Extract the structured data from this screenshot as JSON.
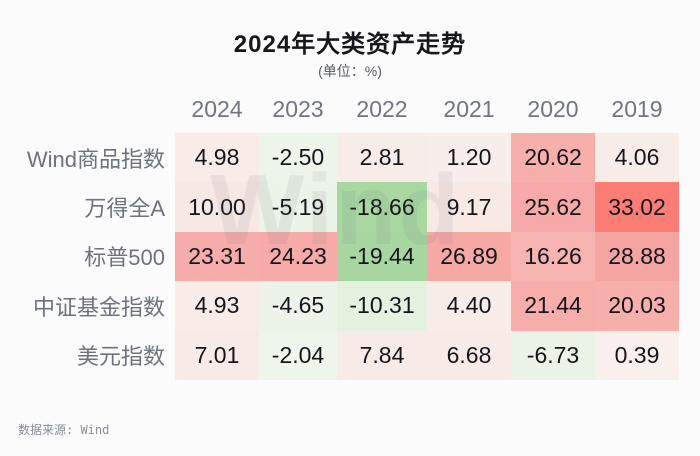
{
  "title": "2024年大类资产走势",
  "subtitle": "(单位：%)",
  "watermark": "Wind",
  "source_note": "数据来源: Wind",
  "colors": {
    "background": "#fbfbfc",
    "strong_red": "#fb7d76",
    "medium_red": "#f6aba8",
    "light_red": "#f8ebe8",
    "light_green": "#ecf4e9",
    "medium_green": "#a8d7a2",
    "header_text": "#71757f",
    "value_text": "#15161a"
  },
  "table": {
    "year_headers": [
      "2024",
      "2023",
      "2022",
      "2021",
      "2020",
      "2019"
    ],
    "rows": [
      {
        "label": "Wind商品指数",
        "cells": [
          {
            "v": "4.98",
            "c": "#f8ebe8"
          },
          {
            "v": "-2.50",
            "c": "#edf5eb"
          },
          {
            "v": "2.81",
            "c": "#f8ece9"
          },
          {
            "v": "1.20",
            "c": "#f9edeb"
          },
          {
            "v": "20.62",
            "c": "#f7afac"
          },
          {
            "v": "4.06",
            "c": "#f8ece9"
          }
        ]
      },
      {
        "label": "万得全A",
        "cells": [
          {
            "v": "10.00",
            "c": "#f8e8e4"
          },
          {
            "v": "-5.19",
            "c": "#ebf4e8"
          },
          {
            "v": "-18.66",
            "c": "#a8d7a2"
          },
          {
            "v": "9.17",
            "c": "#f8e9e5"
          },
          {
            "v": "25.62",
            "c": "#f6a9a6"
          },
          {
            "v": "33.02",
            "c": "#fb7d76"
          }
        ]
      },
      {
        "label": "标普500",
        "cells": [
          {
            "v": "23.31",
            "c": "#f6acaa"
          },
          {
            "v": "24.23",
            "c": "#f6aba8"
          },
          {
            "v": "-19.44",
            "c": "#a7d6a1"
          },
          {
            "v": "26.89",
            "c": "#f6a8a5"
          },
          {
            "v": "16.26",
            "c": "#f7b3b0"
          },
          {
            "v": "28.88",
            "c": "#f5a5a1"
          }
        ]
      },
      {
        "label": "中证基金指数",
        "cells": [
          {
            "v": "4.93",
            "c": "#f8ebe8"
          },
          {
            "v": "-4.65",
            "c": "#ecf4e9"
          },
          {
            "v": "-10.31",
            "c": "#e4f1df"
          },
          {
            "v": "4.40",
            "c": "#f8ece9"
          },
          {
            "v": "21.44",
            "c": "#f7aeab"
          },
          {
            "v": "20.03",
            "c": "#f7afac"
          }
        ]
      },
      {
        "label": "美元指数",
        "cells": [
          {
            "v": "7.01",
            "c": "#f8eae6"
          },
          {
            "v": "-2.04",
            "c": "#eef6ec"
          },
          {
            "v": "7.84",
            "c": "#f8eae6"
          },
          {
            "v": "6.68",
            "c": "#f8eae7"
          },
          {
            "v": "-6.73",
            "c": "#eaf3e6"
          },
          {
            "v": "0.39",
            "c": "#f9efed"
          }
        ]
      }
    ]
  },
  "chart_data": {
    "type": "heatmap",
    "title": "2024年大类资产走势",
    "unit": "%",
    "columns": [
      "2024",
      "2023",
      "2022",
      "2021",
      "2020",
      "2019"
    ],
    "rows": [
      "Wind商品指数",
      "万得全A",
      "标普500",
      "中证基金指数",
      "美元指数"
    ],
    "values": [
      [
        4.98,
        -2.5,
        2.81,
        1.2,
        20.62,
        4.06
      ],
      [
        10.0,
        -5.19,
        -18.66,
        9.17,
        25.62,
        33.02
      ],
      [
        23.31,
        24.23,
        -19.44,
        26.89,
        16.26,
        28.88
      ],
      [
        4.93,
        -4.65,
        -10.31,
        4.4,
        21.44,
        20.03
      ],
      [
        7.01,
        -2.04,
        7.84,
        6.68,
        -6.73,
        0.39
      ]
    ],
    "color_coding": "red shades = positive returns (deeper red = larger gain), green shades = negative returns (deeper green = larger loss)",
    "source": "数据来源: Wind",
    "legend_position": "none",
    "grid": false
  }
}
